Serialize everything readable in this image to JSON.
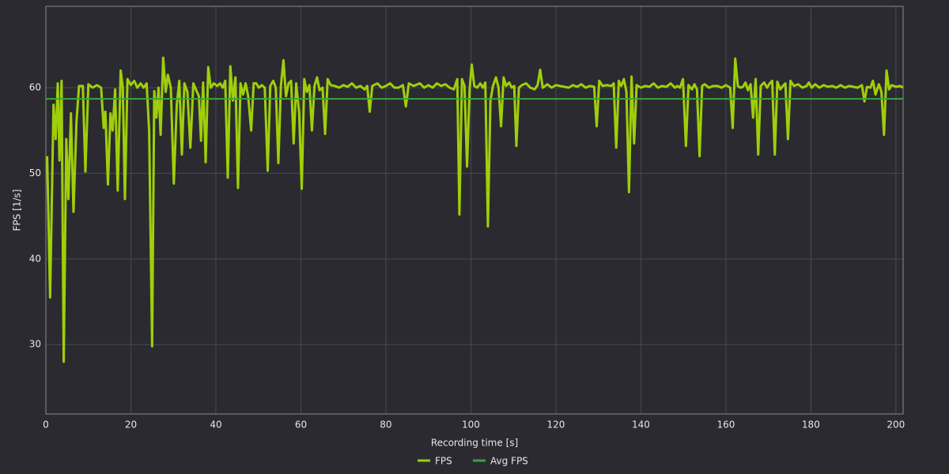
{
  "chart_data": {
    "type": "line",
    "xlabel": "Recording time [s]",
    "ylabel": "FPS [1/s]",
    "xlim": [
      0,
      201.7
    ],
    "ylim": [
      21.9,
      69.5
    ],
    "xticks": [
      0,
      20,
      40,
      60,
      80,
      100,
      120,
      140,
      160,
      180,
      200
    ],
    "yticks": [
      30,
      40,
      50,
      60
    ],
    "grid": true,
    "legend": "bottom",
    "series": [
      {
        "name": "FPS",
        "color": "#9fcf0a",
        "x": [
          0.3,
          1,
          1.8,
          2.3,
          2.8,
          3.2,
          3.7,
          4.2,
          4.8,
          5.3,
          5.9,
          6.5,
          7.2,
          7.8,
          8.7,
          9.3,
          10,
          11,
          12,
          13,
          13.6,
          14,
          14.6,
          15.2,
          15.7,
          16.3,
          16.9,
          17.6,
          18.1,
          18.6,
          19.2,
          20,
          20.8,
          21.5,
          22.3,
          23,
          23.7,
          24.3,
          25,
          25.5,
          26,
          26.5,
          27,
          27.6,
          28.2,
          28.7,
          29.4,
          30.1,
          30.8,
          31.4,
          32,
          32.6,
          33.3,
          34,
          34.7,
          35.3,
          36,
          36.5,
          37,
          37.6,
          38.2,
          38.8,
          39.5,
          40.3,
          41,
          41.6,
          42.2,
          42.8,
          43.4,
          44,
          44.6,
          45.2,
          45.8,
          46.4,
          47,
          47.6,
          48.3,
          48.9,
          49.5,
          50.1,
          50.8,
          51.5,
          52.2,
          52.8,
          53.5,
          54.1,
          54.7,
          55.3,
          55.9,
          56.5,
          57.1,
          57.7,
          58.3,
          58.9,
          59.6,
          60.2,
          60.8,
          61.4,
          62,
          62.6,
          63.2,
          63.8,
          64.4,
          65.1,
          65.7,
          66.3,
          67,
          68,
          69,
          70,
          71,
          72,
          73,
          74,
          75,
          75.6,
          76.2,
          76.8,
          78,
          79,
          80,
          81,
          82,
          83,
          84,
          84.7,
          85.4,
          86.5,
          88,
          89,
          90,
          91,
          92,
          93,
          94,
          95,
          96,
          96.8,
          97.3,
          97.9,
          98.5,
          99.1,
          99.7,
          100.2,
          100.8,
          101.5,
          102.2,
          102.8,
          103.4,
          104,
          104.6,
          105.2,
          105.9,
          106.5,
          107.1,
          107.7,
          108.3,
          109,
          109.6,
          110.2,
          110.7,
          111.3,
          112,
          113,
          114,
          115,
          115.7,
          116.3,
          116.9,
          118,
          119,
          120,
          121,
          122,
          123,
          124,
          125,
          126,
          127,
          128,
          129,
          129.6,
          130.2,
          131,
          132,
          133,
          133.6,
          134.2,
          134.8,
          135.4,
          136,
          136.6,
          137.2,
          137.8,
          138.4,
          139,
          140,
          141,
          142,
          143,
          144,
          145,
          146,
          147,
          148,
          148.6,
          149.2,
          149.9,
          150.6,
          151.2,
          152,
          152.6,
          153.2,
          153.8,
          154.4,
          155,
          156,
          157,
          158,
          159,
          160,
          161,
          161.6,
          162.2,
          162.8,
          163.4,
          164,
          164.6,
          165.2,
          165.8,
          166.4,
          167,
          167.6,
          168.2,
          169,
          169.7,
          170.3,
          170.9,
          171.5,
          172.1,
          172.8,
          173.4,
          174,
          174.6,
          175.2,
          176,
          177,
          178,
          179,
          179.5,
          180.2,
          181,
          182,
          183,
          184,
          185,
          186,
          187,
          188,
          189,
          190,
          191,
          192,
          192.6,
          193.2,
          194,
          194.6,
          195.2,
          196,
          196.6,
          197.2,
          197.8,
          198.4,
          199,
          200,
          201,
          201.7
        ],
        "values": [
          52,
          35.5,
          58,
          54,
          60.5,
          51.5,
          60.8,
          28,
          54,
          47,
          57,
          45.5,
          56,
          60.2,
          60.2,
          50.2,
          60.4,
          60,
          60.3,
          60,
          55.3,
          57.2,
          48.7,
          57,
          55,
          59.8,
          48,
          62,
          60,
          47,
          61,
          60.3,
          60.8,
          60,
          60.5,
          60,
          60.5,
          55,
          29.8,
          59.6,
          56.5,
          60,
          54.5,
          63.5,
          59.5,
          61.5,
          60,
          48.8,
          58,
          60.8,
          52.2,
          60.5,
          59.5,
          53,
          60.5,
          59.8,
          59,
          53.8,
          60.6,
          51.3,
          62.4,
          60,
          60.5,
          60.2,
          60.5,
          60,
          60.8,
          49.5,
          62.5,
          58.5,
          61.2,
          48.3,
          60.5,
          59.2,
          60.5,
          59,
          55,
          60.5,
          60.5,
          60,
          60.3,
          60,
          50.3,
          60.2,
          60.8,
          60,
          51.2,
          60.2,
          63.2,
          59,
          60.5,
          60.8,
          53.5,
          60.5,
          57,
          48.2,
          61,
          59.5,
          60.3,
          55,
          60.2,
          61.2,
          59.7,
          60,
          54.6,
          61,
          60.3,
          60.2,
          60,
          60.3,
          60.1,
          60.5,
          60,
          60.2,
          59.8,
          60.2,
          57.2,
          60.2,
          60.5,
          60,
          60.2,
          60.5,
          60,
          60,
          60.3,
          57.8,
          60.5,
          60.2,
          60.5,
          60,
          60.3,
          60,
          60.5,
          60.2,
          60.4,
          60,
          59.8,
          61,
          45.2,
          61,
          60.2,
          50.8,
          59.8,
          62.7,
          60.2,
          60,
          60.5,
          60,
          60.6,
          43.8,
          58.5,
          60.2,
          61.2,
          60,
          55.5,
          61.2,
          60.2,
          60.6,
          60,
          60.2,
          53.2,
          60,
          60.3,
          60.5,
          60,
          59.8,
          60.3,
          62.1,
          60,
          60.4,
          60,
          60.3,
          60.2,
          60.1,
          60,
          60.3,
          60.1,
          60.4,
          60,
          60.2,
          60.1,
          55.5,
          60.8,
          60.2,
          60.3,
          60.2,
          60.5,
          53,
          60.8,
          60.2,
          61,
          59.5,
          47.8,
          61.3,
          53.5,
          60.3,
          60,
          60.2,
          60.1,
          60.5,
          60,
          60.2,
          60.1,
          60.5,
          60,
          60.2,
          60,
          61,
          53.2,
          60.3,
          59.8,
          60.4,
          59.8,
          52,
          60.2,
          60.4,
          60,
          60.2,
          60.2,
          60,
          60.3,
          60,
          55.3,
          63.4,
          60.2,
          60,
          60.1,
          60.6,
          59.7,
          60.4,
          56.5,
          61,
          52.2,
          60.2,
          60.6,
          60,
          60.5,
          60.8,
          52.2,
          60.7,
          59.8,
          60.2,
          60.5,
          54,
          60.8,
          60.2,
          60.4,
          60,
          60.2,
          60.6,
          60,
          60.4,
          60,
          60.3,
          60.1,
          60.2,
          60,
          60.3,
          60,
          60.2,
          60.1,
          60,
          60.3,
          58.4,
          60.1,
          60,
          60.8,
          59.2,
          60.4,
          59.5,
          54.5,
          62,
          59.8,
          60.3,
          60.1,
          60.2,
          60
        ]
      },
      {
        "name": "Avg FPS",
        "color": "#3aa53a",
        "x": [
          0,
          201.7
        ],
        "values": [
          58.7,
          58.7
        ]
      }
    ]
  }
}
